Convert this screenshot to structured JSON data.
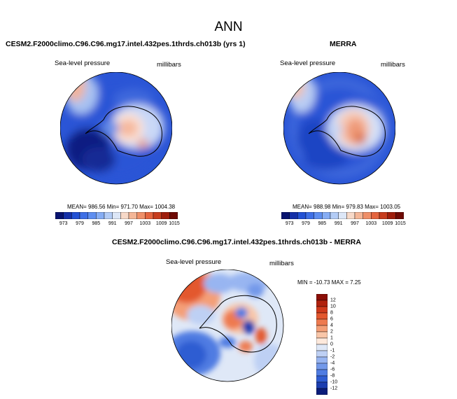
{
  "title": "ANN",
  "panels": [
    {
      "heading": "CESM2.F2000climo.C96.C96.mg17.intel.432pes.1thrds.ch013b (yrs 1)",
      "variable": "Sea-level pressure",
      "units": "millibars",
      "stats": "MEAN= 986.56   Min= 971.70   Max= 1004.38"
    },
    {
      "heading": "MERRA",
      "variable": "Sea-level pressure",
      "units": "millibars",
      "stats": "MEAN= 988.98   Min= 979.83   Max= 1003.05"
    },
    {
      "heading": "CESM2.F2000climo.C96.C96.mg17.intel.432pes.1thrds.ch013b - MERRA",
      "variable": "Sea-level pressure",
      "units": "millibars",
      "stats": "MIN = -10.73 MAX =   7.25"
    }
  ],
  "colorbar_top": {
    "labels": [
      "973",
      "979",
      "985",
      "991",
      "997",
      "1003",
      "1009",
      "1015"
    ],
    "colors": [
      "#08136f",
      "#1530a8",
      "#2351d4",
      "#3e6fe6",
      "#5e8ef0",
      "#86adf4",
      "#b3ccf6",
      "#dde7f7",
      "#f7d9c8",
      "#f4b697",
      "#ef8f68",
      "#e4643e",
      "#c73d1d",
      "#9e1d0b",
      "#6e0a04"
    ]
  },
  "colorbar_diff": {
    "labels": [
      "12",
      "10",
      "8",
      "6",
      "4",
      "2",
      "1",
      "0",
      "-1",
      "-2",
      "-4",
      "-6",
      "-8",
      "-10",
      "-12"
    ],
    "colors": [
      "#8b0e06",
      "#b0220e",
      "#cf3a1c",
      "#e3582f",
      "#ee7a4f",
      "#f49f77",
      "#f9c6a8",
      "#fde9dc",
      "#dfe8f7",
      "#bed0f4",
      "#98b5f1",
      "#7399ea",
      "#4f7ce2",
      "#2f5dd2",
      "#1c3eb0",
      "#0b1d7a"
    ]
  }
}
